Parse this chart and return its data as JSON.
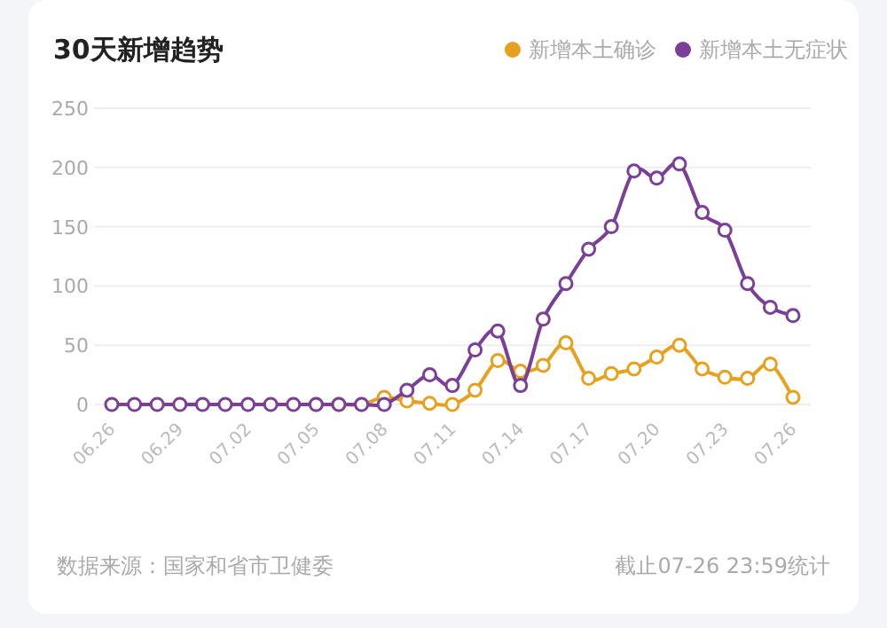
{
  "chart_data": {
    "type": "line",
    "title": "30天新增趋势",
    "categories": [
      "06.26",
      null,
      null,
      "06.29",
      null,
      null,
      "07.02",
      null,
      null,
      "07.05",
      null,
      null,
      "07.08",
      null,
      null,
      "07.11",
      null,
      null,
      "07.14",
      null,
      null,
      "07.17",
      null,
      null,
      "07.20",
      null,
      null,
      "07.23",
      null,
      null,
      "07.26"
    ],
    "series": [
      {
        "name": "新增本土确诊",
        "color": "#e6a11e",
        "values": [
          null,
          null,
          null,
          null,
          null,
          null,
          null,
          null,
          null,
          0,
          0,
          0,
          6,
          3,
          1,
          0,
          12,
          37,
          28,
          33,
          52,
          22,
          26,
          30,
          40,
          50,
          30,
          23,
          22,
          34,
          6
        ]
      },
      {
        "name": "新增本土无症状",
        "color": "#7b3f98",
        "values": [
          0,
          0,
          0,
          0,
          0,
          0,
          0,
          0,
          0,
          0,
          0,
          0,
          0,
          12,
          25,
          16,
          46,
          62,
          16,
          72,
          102,
          131,
          150,
          197,
          191,
          203,
          162,
          147,
          102,
          82,
          75
        ]
      }
    ],
    "ylim": [
      0,
      250
    ],
    "yticks": [
      0,
      50,
      100,
      150,
      200,
      250
    ],
    "grid": "y",
    "legend": "top right",
    "marker": "circle",
    "annotations": [
      "数据来源：国家和省市卫健委",
      "截止07-26 23:59统计"
    ]
  }
}
